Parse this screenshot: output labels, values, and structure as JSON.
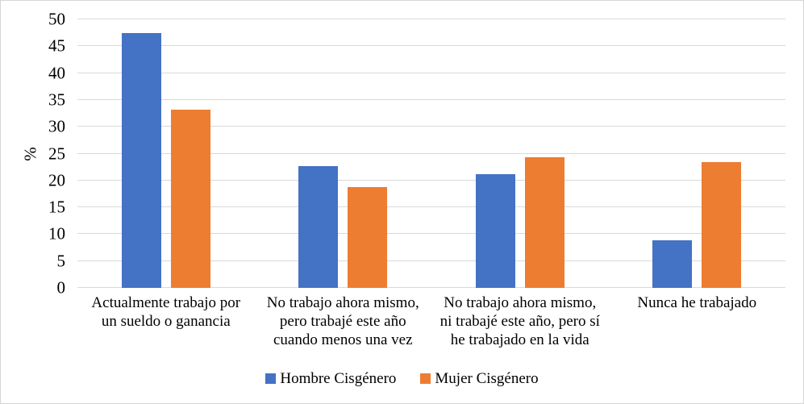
{
  "chart_data": {
    "type": "bar",
    "ylabel": "%",
    "ylim": [
      0,
      50
    ],
    "ytick_step": 5,
    "yticks": [
      0,
      5,
      10,
      15,
      20,
      25,
      30,
      35,
      40,
      45,
      50
    ],
    "grid": true,
    "legend_position": "bottom",
    "categories": [
      "Actualmente trabajo por\nun sueldo o ganancia",
      "No trabajo ahora mismo,\npero trabajé este año\ncuando menos una vez",
      "No trabajo ahora mismo,\nni trabajé este año, pero sí\nhe trabajado en la vida",
      "Nunca he trabajado"
    ],
    "series": [
      {
        "name": "Hombre Cisgénero",
        "color": "#4472C4",
        "values": [
          47.4,
          22.7,
          21.2,
          8.8
        ]
      },
      {
        "name": "Mujer Cisgénero",
        "color": "#ED7D31",
        "values": [
          33.2,
          18.8,
          24.4,
          23.5
        ]
      }
    ]
  },
  "colors": {
    "gridline": "#D9D9D9",
    "axis_line": "#D9D9D9",
    "chart_border": "#D6D6D6",
    "background": "#FFFFFF",
    "text": "#000000"
  }
}
